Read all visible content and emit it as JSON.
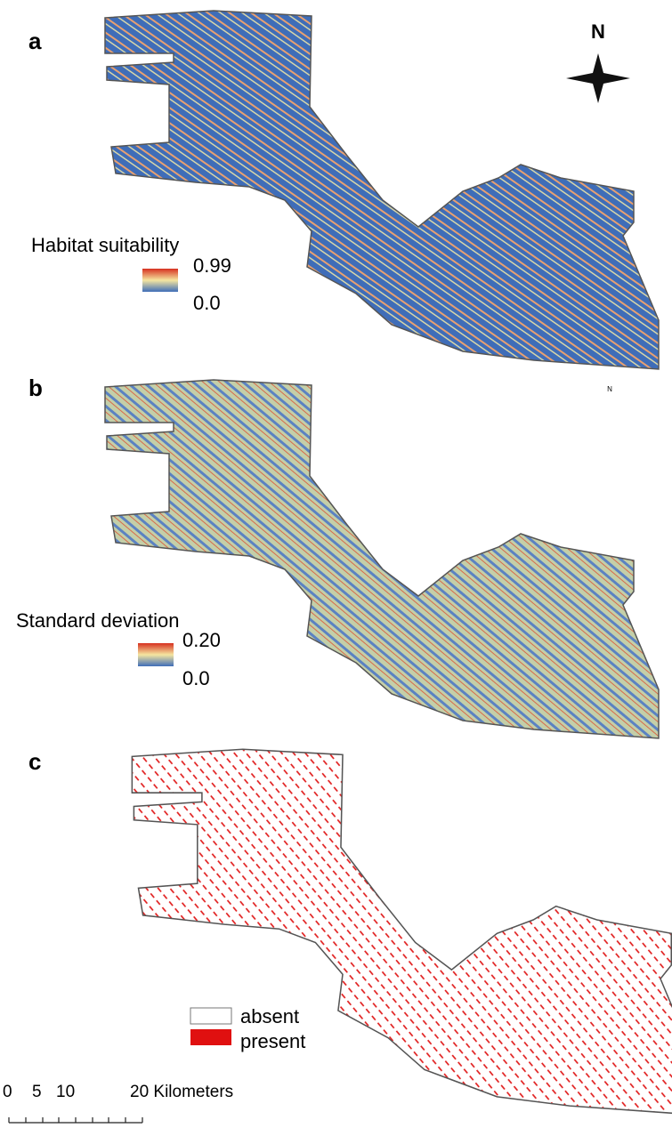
{
  "panels": [
    {
      "label": "a",
      "legend": {
        "title": "Habitat suitability",
        "max": "0.99",
        "min": "0.0"
      }
    },
    {
      "label": "b",
      "legend": {
        "title": "Standard deviation",
        "max": "0.20",
        "min": "0.0"
      },
      "north_small": "N"
    },
    {
      "label": "c",
      "legend": {
        "items": [
          "absent",
          "present"
        ]
      }
    }
  ],
  "north_arrow": "N",
  "scale_bar": {
    "ticks": [
      "0",
      "5",
      "10",
      "20 Kilometers"
    ]
  }
}
